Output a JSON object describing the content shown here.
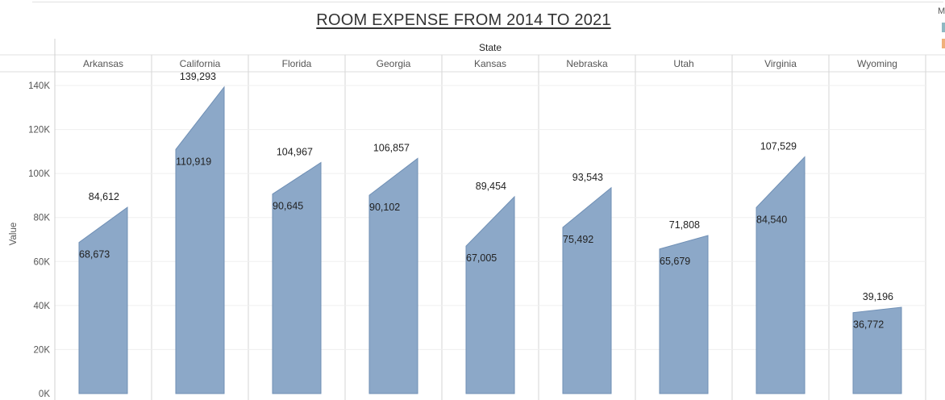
{
  "chart_data": {
    "type": "area",
    "title": "ROOM EXPENSE FROM 2014 TO 2021",
    "column_header": "State",
    "ylabel": "Value",
    "ylim": [
      0,
      140000
    ],
    "y_ticks": [
      0,
      20000,
      40000,
      60000,
      80000,
      100000,
      120000,
      140000
    ],
    "y_tick_labels": [
      "0K",
      "20K",
      "40K",
      "60K",
      "80K",
      "100K",
      "120K",
      "140K"
    ],
    "color": "#8ca8c8",
    "stroke_color": "#6f8fb5",
    "grid": true,
    "categories": [
      "Arkansas",
      "California",
      "Florida",
      "Georgia",
      "Kansas",
      "Nebraska",
      "Utah",
      "Virginia",
      "Wyoming"
    ],
    "start_values": [
      68673,
      110919,
      90645,
      90102,
      67005,
      75492,
      65679,
      84540,
      36772
    ],
    "end_values": [
      84612,
      139293,
      104967,
      106857,
      89454,
      93543,
      71808,
      107529,
      39196
    ],
    "start_labels": [
      "68,673",
      "110,919",
      "90,645",
      "90,102",
      "67,005",
      "75,492",
      "65,679",
      "84,540",
      "36,772"
    ],
    "end_labels": [
      "84,612",
      "139,293",
      "104,967",
      "106,857",
      "89,454",
      "93,543",
      "71,808",
      "107,529",
      "39,196"
    ]
  },
  "legend": {
    "title_fragment": "M",
    "colors": [
      "#8fb8c2",
      "#f0b07a"
    ]
  }
}
